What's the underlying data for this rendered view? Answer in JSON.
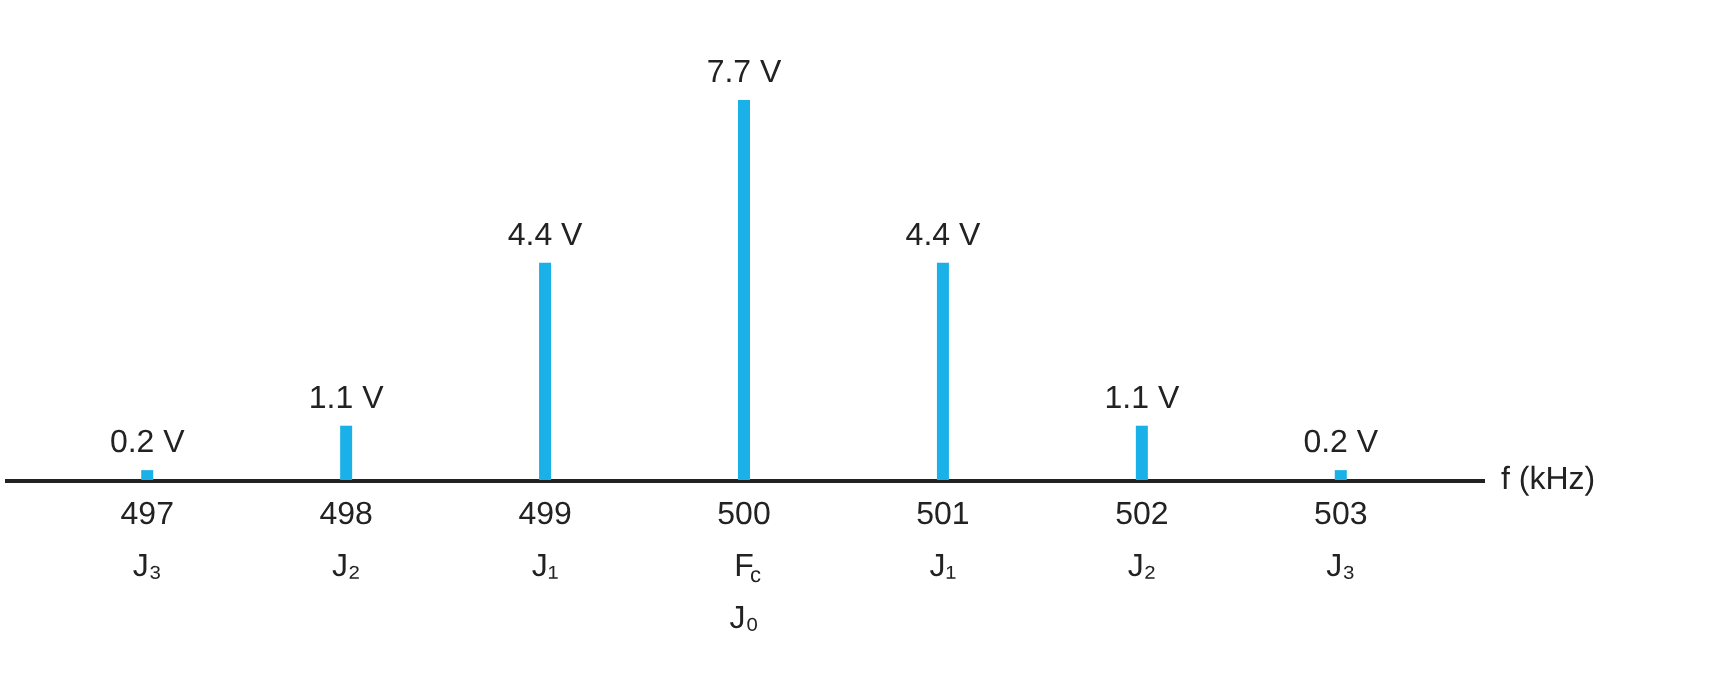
{
  "chart_data": {
    "type": "bar",
    "xlabel": "f (kHz)",
    "categories": [
      "497\nJ₃",
      "498\nJ₂",
      "499\nJ₁",
      "500\nF$_{c}$\nJ₀",
      "501\nJ₁",
      "502\nJ₂",
      "503\nJ₃"
    ],
    "values": [
      0.2,
      1.1,
      4.4,
      7.7,
      4.4,
      1.1,
      0.2
    ],
    "value_labels": [
      "0.2 V",
      "1.1 V",
      "4.4 V",
      "7.7 V",
      "4.4 V",
      "1.1 V",
      "0.2 V"
    ],
    "color": "#1ab0e8",
    "grid": false
  }
}
